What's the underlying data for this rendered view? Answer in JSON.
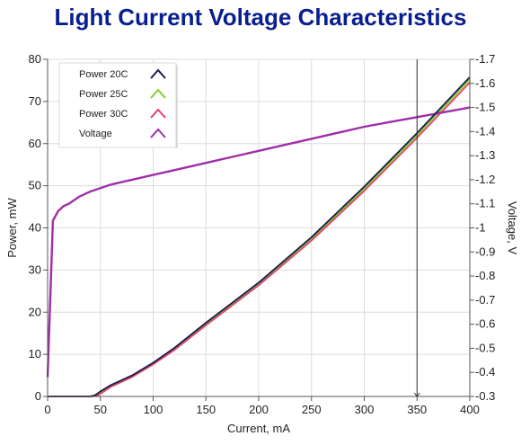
{
  "chart_data": {
    "type": "line",
    "title": "Light Current Voltage Characteristics",
    "xlabel": "Current, mA",
    "ylabel": "Power, mW",
    "y2label": "Voltage, V",
    "xlim": [
      0,
      400
    ],
    "ylim": [
      0,
      80
    ],
    "y2lim": [
      0.3,
      1.7
    ],
    "xticks": [
      0,
      50,
      100,
      150,
      200,
      250,
      300,
      350,
      400
    ],
    "yticks": [
      0,
      10,
      20,
      30,
      40,
      50,
      60,
      70,
      80
    ],
    "y2ticks": [
      0.3,
      0.4,
      0.5,
      0.6,
      0.7,
      0.8,
      0.9,
      1,
      1.1,
      1.2,
      1.3,
      1.4,
      1.5,
      1.6,
      1.7
    ],
    "grid": true,
    "legend_position": "top-left",
    "cursor_x": 350,
    "series": [
      {
        "name": "Power 20C",
        "axis": "left",
        "color": "#1a1a4e",
        "x": [
          0,
          40,
          45,
          50,
          60,
          80,
          100,
          120,
          150,
          200,
          250,
          300,
          350,
          400
        ],
        "y": [
          0,
          0,
          0.3,
          1.2,
          2.7,
          5.0,
          8.0,
          11.5,
          17.5,
          27.0,
          37.8,
          49.8,
          62.5,
          75.8
        ]
      },
      {
        "name": "Power 25C",
        "axis": "left",
        "color": "#7fd12a",
        "x": [
          0,
          42,
          47,
          52,
          60,
          80,
          100,
          120,
          150,
          200,
          250,
          300,
          350,
          400
        ],
        "y": [
          0,
          0,
          0.3,
          1.2,
          2.5,
          4.8,
          7.8,
          11.2,
          17.2,
          26.7,
          37.4,
          49.3,
          62.0,
          75.2
        ]
      },
      {
        "name": "Power 30C",
        "axis": "left",
        "color": "#e0456a",
        "x": [
          0,
          43,
          48,
          53,
          60,
          80,
          100,
          120,
          150,
          200,
          250,
          300,
          350,
          400
        ],
        "y": [
          0,
          0,
          0.3,
          1.1,
          2.3,
          4.6,
          7.6,
          11.0,
          16.9,
          26.4,
          37.0,
          48.8,
          61.4,
          74.5
        ]
      },
      {
        "name": "Voltage",
        "axis": "right",
        "color": "#a02ea8",
        "x": [
          0,
          5,
          10,
          15,
          20,
          30,
          40,
          50,
          60,
          70,
          80,
          100,
          125,
          150,
          175,
          200,
          225,
          250,
          275,
          300,
          325,
          350,
          375,
          400
        ],
        "y": [
          0.38,
          1.03,
          1.07,
          1.09,
          1.1,
          1.13,
          1.15,
          1.165,
          1.18,
          1.19,
          1.2,
          1.22,
          1.245,
          1.27,
          1.295,
          1.32,
          1.345,
          1.37,
          1.395,
          1.42,
          1.44,
          1.46,
          1.48,
          1.5
        ]
      }
    ]
  }
}
